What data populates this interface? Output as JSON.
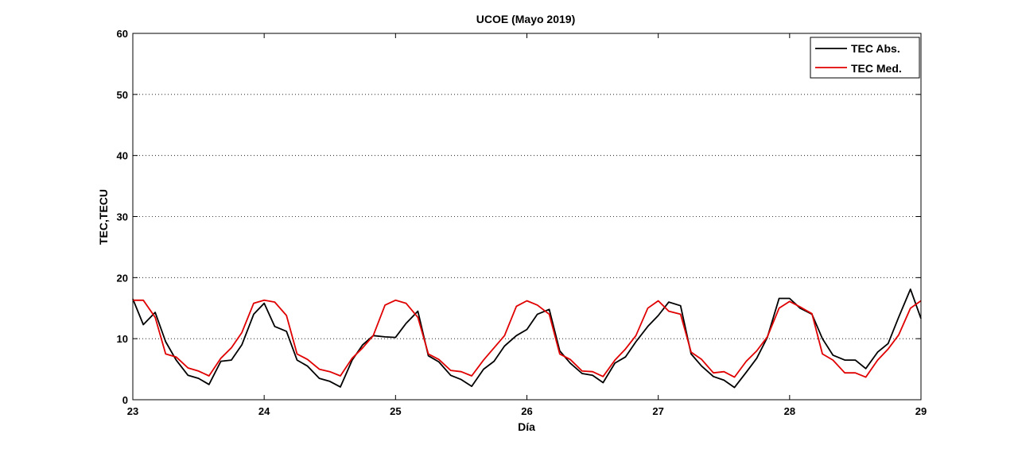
{
  "chart_data": {
    "type": "line",
    "title": "UCOE (Mayo 2019)",
    "xlabel": "Día",
    "ylabel": "TEC,TECU",
    "xlim": [
      23,
      29
    ],
    "ylim": [
      0,
      60
    ],
    "xticks": [
      23,
      24,
      25,
      26,
      27,
      28,
      29
    ],
    "yticks": [
      0,
      10,
      20,
      30,
      40,
      50,
      60
    ],
    "grid": "horizontal dotted",
    "legend_position": "top-right",
    "series": [
      {
        "name": "TEC Abs.",
        "color": "#000000",
        "x": [
          23.0,
          23.08,
          23.17,
          23.25,
          23.33,
          23.42,
          23.5,
          23.58,
          23.67,
          23.75,
          23.83,
          23.92,
          24.0,
          24.08,
          24.17,
          24.25,
          24.33,
          24.42,
          24.5,
          24.58,
          24.67,
          24.75,
          24.83,
          24.92,
          25.0,
          25.08,
          25.17,
          25.25,
          25.33,
          25.42,
          25.5,
          25.58,
          25.67,
          25.75,
          25.83,
          25.92,
          26.0,
          26.08,
          26.17,
          26.25,
          26.33,
          26.42,
          26.5,
          26.58,
          26.67,
          26.75,
          26.83,
          26.92,
          27.0,
          27.08,
          27.17,
          27.25,
          27.33,
          27.42,
          27.5,
          27.58,
          27.67,
          27.75,
          27.83,
          27.92,
          28.0,
          28.08,
          28.17,
          28.25,
          28.33,
          28.42,
          28.5,
          28.58,
          28.67,
          28.75,
          28.83,
          28.92,
          29.0
        ],
        "y": [
          16.5,
          12.3,
          14.3,
          9.5,
          6.5,
          4.0,
          3.5,
          2.5,
          6.3,
          6.5,
          9.0,
          14.0,
          15.8,
          12.0,
          11.2,
          6.5,
          5.5,
          3.5,
          3.0,
          2.1,
          6.5,
          9.0,
          10.5,
          10.3,
          10.2,
          12.5,
          14.5,
          7.2,
          6.2,
          4.0,
          3.3,
          2.2,
          5.0,
          6.3,
          8.8,
          10.5,
          11.5,
          14.0,
          14.8,
          8.0,
          6.0,
          4.3,
          4.0,
          2.8,
          6.0,
          7.0,
          9.5,
          12.0,
          13.8,
          16.0,
          15.4,
          7.5,
          5.5,
          3.8,
          3.2,
          2.0,
          4.5,
          6.8,
          10.2,
          16.6,
          16.6,
          15.0,
          14.0,
          10.0,
          7.3,
          6.5,
          6.5,
          5.1,
          7.8,
          9.2,
          13.5,
          18.1,
          13.3
        ]
      },
      {
        "name": "TEC Med.",
        "color": "#e00000",
        "x": [
          23.0,
          23.08,
          23.17,
          23.25,
          23.33,
          23.42,
          23.5,
          23.58,
          23.67,
          23.75,
          23.83,
          23.92,
          24.0,
          24.08,
          24.17,
          24.25,
          24.33,
          24.42,
          24.5,
          24.58,
          24.67,
          24.75,
          24.83,
          24.92,
          25.0,
          25.08,
          25.17,
          25.25,
          25.33,
          25.42,
          25.5,
          25.58,
          25.67,
          25.75,
          25.83,
          25.92,
          26.0,
          26.08,
          26.17,
          26.25,
          26.33,
          26.42,
          26.5,
          26.58,
          26.67,
          26.75,
          26.83,
          26.92,
          27.0,
          27.08,
          27.17,
          27.25,
          27.33,
          27.42,
          27.5,
          27.58,
          27.67,
          27.75,
          27.83,
          27.92,
          28.0,
          28.08,
          28.17,
          28.25,
          28.33,
          28.42,
          28.5,
          28.58,
          28.67,
          28.75,
          28.83,
          28.92,
          29.0
        ],
        "y": [
          16.3,
          16.3,
          13.5,
          7.5,
          7.0,
          5.2,
          4.7,
          3.9,
          6.8,
          8.5,
          11.0,
          15.8,
          16.3,
          16.0,
          13.8,
          7.5,
          6.6,
          5.0,
          4.6,
          3.9,
          6.8,
          8.5,
          10.5,
          15.5,
          16.3,
          15.8,
          13.5,
          7.5,
          6.6,
          4.8,
          4.6,
          3.9,
          6.5,
          8.5,
          10.5,
          15.3,
          16.2,
          15.5,
          14.0,
          7.5,
          6.6,
          4.7,
          4.6,
          3.8,
          6.5,
          8.3,
          10.5,
          15.0,
          16.2,
          14.5,
          14.0,
          7.8,
          6.6,
          4.4,
          4.6,
          3.7,
          6.3,
          8.0,
          10.3,
          15.0,
          16.1,
          15.2,
          14.1,
          7.5,
          6.5,
          4.4,
          4.4,
          3.7,
          6.5,
          8.3,
          10.6,
          15.0,
          16.2
        ]
      }
    ]
  }
}
